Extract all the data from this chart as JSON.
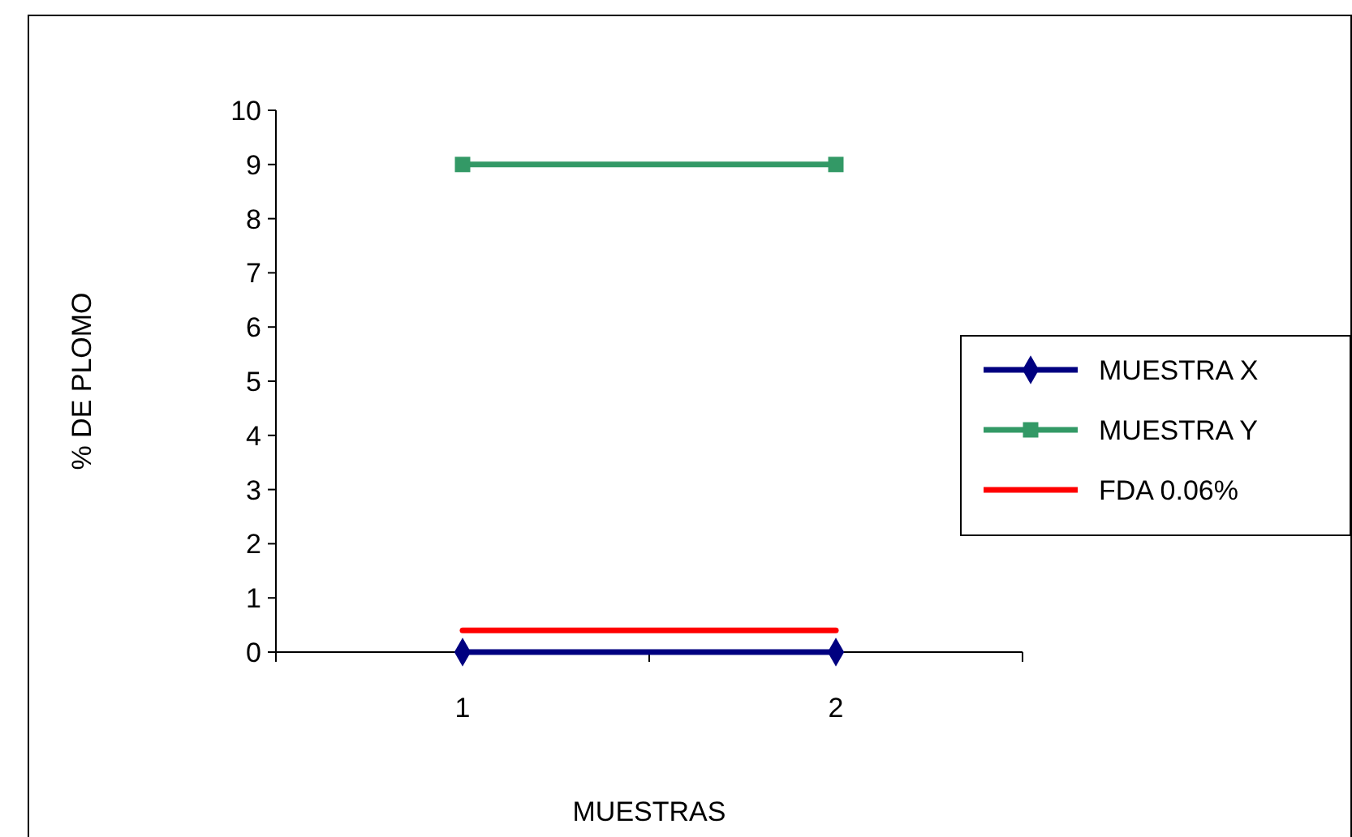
{
  "chart_data": {
    "type": "line",
    "xlabel": "MUESTRAS",
    "ylabel": "% DE PLOMO",
    "x": [
      1,
      2
    ],
    "xlim": [
      0.5,
      2.5
    ],
    "xticks": [
      {
        "value": 0.5,
        "label": null
      },
      1,
      {
        "value": 1.5,
        "label": null
      },
      2,
      {
        "value": 2.5,
        "label": null
      }
    ],
    "ylim": [
      0,
      10
    ],
    "yticks": [
      0,
      1,
      2,
      3,
      4,
      5,
      6,
      7,
      8,
      9,
      10
    ],
    "grid": false,
    "legend": "right",
    "series": [
      {
        "name": "MUESTRA X",
        "color": "#000080",
        "values": [
          0,
          0
        ],
        "marker": "diamond"
      },
      {
        "name": "MUESTRA Y",
        "color": "#339966",
        "values": [
          9,
          9
        ],
        "marker": "square"
      },
      {
        "name": "FDA 0.06%",
        "color": "#ff0000",
        "values": [
          0.4,
          0.4
        ],
        "marker": "none"
      }
    ]
  }
}
